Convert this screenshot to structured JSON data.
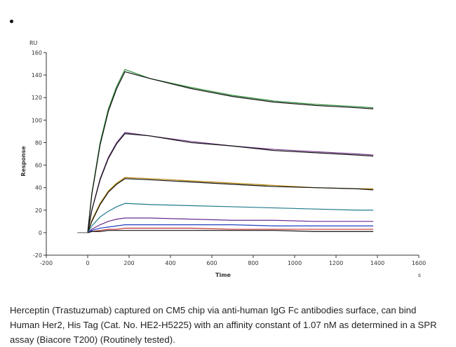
{
  "marker": "•",
  "caption": "Herceptin (Trastuzumab) captured on CM5 chip via anti-human IgG Fc antibodies surface, can bind Human Her2, His Tag (Cat. No. HE2-H5225) with an affinity constant of 1.07 nM as determined in a SPR assay (Biacore T200) (Routinely tested).",
  "chart_data": {
    "type": "line",
    "title": "",
    "xlabel": "Time",
    "ylabel": "Response",
    "y_unit": "RU",
    "x_unit": "s",
    "xlim": [
      -200,
      1600
    ],
    "ylim": [
      -20,
      160
    ],
    "x_ticks": [
      "-200",
      "0",
      "200",
      "400",
      "600",
      "800",
      "1000",
      "1200",
      "1400",
      "1600"
    ],
    "y_ticks": [
      "-20",
      "0",
      "20",
      "40",
      "60",
      "80",
      "100",
      "120",
      "140",
      "160"
    ],
    "grid": false,
    "baseline": {
      "x": [
        -50,
        0
      ],
      "y": [
        0,
        0
      ]
    },
    "series": [
      {
        "color": "#2f8f3a",
        "x": [
          0,
          20,
          60,
          100,
          140,
          180,
          300,
          500,
          700,
          900,
          1100,
          1300,
          1380
        ],
        "y": [
          0,
          35,
          80,
          110,
          130,
          145,
          137,
          129,
          122,
          117,
          114,
          112,
          111
        ]
      },
      {
        "color": "#111111",
        "x": [
          0,
          20,
          60,
          100,
          140,
          180,
          300,
          500,
          700,
          900,
          1100,
          1300,
          1380
        ],
        "y": [
          0,
          34,
          78,
          108,
          128,
          143,
          137,
          128,
          121,
          116,
          113,
          111,
          110
        ]
      },
      {
        "color": "#7a3f8f",
        "x": [
          0,
          20,
          60,
          100,
          140,
          180,
          300,
          500,
          700,
          900,
          1100,
          1300,
          1380
        ],
        "y": [
          0,
          20,
          48,
          67,
          80,
          89,
          86,
          81,
          77,
          74,
          72,
          70,
          69
        ]
      },
      {
        "color": "#111111",
        "x": [
          0,
          20,
          60,
          100,
          140,
          180,
          300,
          500,
          700,
          900,
          1100,
          1300,
          1380
        ],
        "y": [
          0,
          20,
          47,
          66,
          79,
          88,
          86,
          80,
          77,
          73,
          71,
          69,
          68
        ]
      },
      {
        "color": "#b8860b",
        "x": [
          0,
          20,
          60,
          100,
          140,
          180,
          300,
          500,
          700,
          900,
          1100,
          1300,
          1380
        ],
        "y": [
          0,
          11,
          26,
          37,
          44,
          49,
          48,
          46,
          44,
          42,
          40,
          39,
          39
        ]
      },
      {
        "color": "#111111",
        "x": [
          0,
          20,
          60,
          100,
          140,
          180,
          300,
          500,
          700,
          900,
          1100,
          1300,
          1380
        ],
        "y": [
          0,
          10,
          25,
          36,
          43,
          48,
          47,
          45,
          43,
          41,
          40,
          39,
          38
        ]
      },
      {
        "color": "#1f7a8c",
        "x": [
          0,
          20,
          60,
          100,
          140,
          180,
          300,
          500,
          700,
          900,
          1100,
          1300,
          1380
        ],
        "y": [
          0,
          6,
          14,
          19,
          23,
          26,
          25,
          24,
          23,
          22,
          21,
          20,
          20
        ]
      },
      {
        "color": "#6a2c91",
        "x": [
          0,
          20,
          60,
          100,
          140,
          180,
          300,
          500,
          700,
          900,
          1100,
          1300,
          1380
        ],
        "y": [
          0,
          3,
          7,
          10,
          12,
          13,
          13,
          12,
          11,
          11,
          10,
          10,
          10
        ]
      },
      {
        "color": "#1f3fbf",
        "x": [
          0,
          20,
          60,
          100,
          140,
          180,
          300,
          500,
          700,
          900,
          1100,
          1300,
          1380
        ],
        "y": [
          0,
          2,
          4,
          5,
          6,
          7,
          7,
          7,
          7,
          6,
          6,
          6,
          6
        ]
      },
      {
        "color": "#c03030",
        "x": [
          0,
          20,
          60,
          100,
          140,
          180,
          300,
          500,
          700,
          900,
          1100,
          1300,
          1380
        ],
        "y": [
          0,
          1,
          2,
          3,
          3,
          4,
          4,
          4,
          3,
          3,
          3,
          3,
          3
        ]
      },
      {
        "color": "#111111",
        "x": [
          0,
          20,
          60,
          100,
          140,
          180,
          300,
          500,
          700,
          900,
          1100,
          1300,
          1380
        ],
        "y": [
          0,
          1,
          1,
          2,
          2,
          2,
          2,
          2,
          2,
          2,
          1,
          1,
          1
        ]
      }
    ]
  }
}
